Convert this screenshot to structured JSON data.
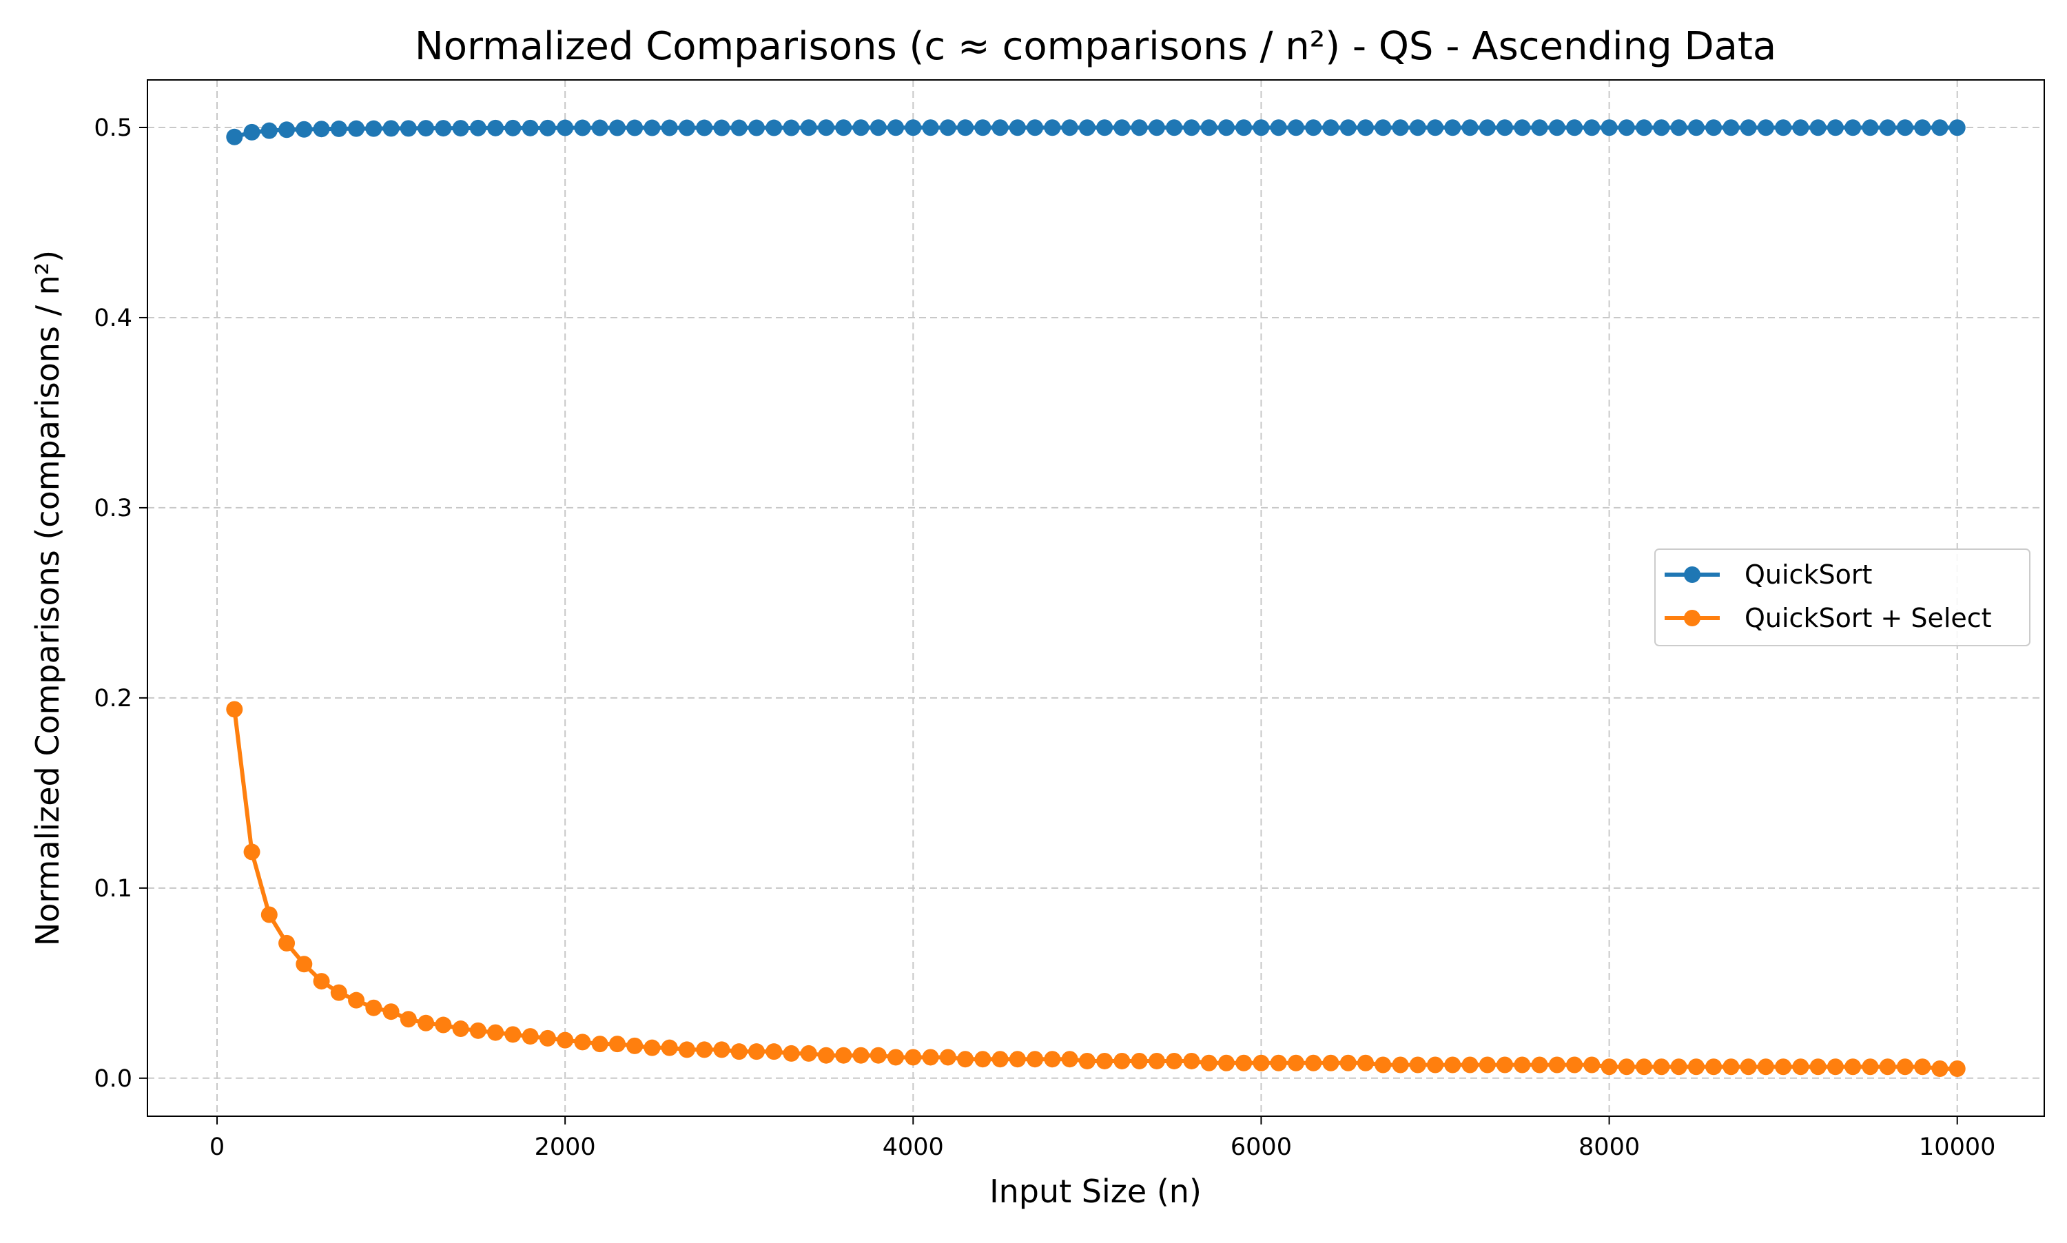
{
  "chart_data": {
    "type": "line",
    "title": "Normalized Comparisons (c ≈ comparisons / n²) - QS - Ascending Data",
    "xlabel": "Input Size (n)",
    "ylabel": "Normalized Comparisons (comparisons / n²)",
    "xlim": [
      -400,
      10500
    ],
    "ylim": [
      -0.02,
      0.525
    ],
    "xticks": [
      0,
      2000,
      4000,
      6000,
      8000,
      10000
    ],
    "xtick_labels": [
      "0",
      "2000",
      "4000",
      "6000",
      "8000",
      "10000"
    ],
    "yticks": [
      0.0,
      0.1,
      0.2,
      0.3,
      0.4,
      0.5
    ],
    "ytick_labels": [
      "0.0",
      "0.1",
      "0.2",
      "0.3",
      "0.4",
      "0.5"
    ],
    "grid": true,
    "legend_position": "center-right",
    "x": [
      100,
      200,
      300,
      400,
      500,
      600,
      700,
      800,
      900,
      1000,
      1100,
      1200,
      1300,
      1400,
      1500,
      1600,
      1700,
      1800,
      1900,
      2000,
      2100,
      2200,
      2300,
      2400,
      2500,
      2600,
      2700,
      2800,
      2900,
      3000,
      3100,
      3200,
      3300,
      3400,
      3500,
      3600,
      3700,
      3800,
      3900,
      4000,
      4100,
      4200,
      4300,
      4400,
      4500,
      4600,
      4700,
      4800,
      4900,
      5000,
      5100,
      5200,
      5300,
      5400,
      5500,
      5600,
      5700,
      5800,
      5900,
      6000,
      6100,
      6200,
      6300,
      6400,
      6500,
      6600,
      6700,
      6800,
      6900,
      7000,
      7100,
      7200,
      7300,
      7400,
      7500,
      7600,
      7700,
      7800,
      7900,
      8000,
      8100,
      8200,
      8300,
      8400,
      8500,
      8600,
      8700,
      8800,
      8900,
      9000,
      9100,
      9200,
      9300,
      9400,
      9500,
      9600,
      9700,
      9800,
      9900,
      10000
    ],
    "series": [
      {
        "name": "QuickSort",
        "color": "#1f77b4",
        "values": [
          0.495,
          0.4975,
          0.4983,
          0.4988,
          0.499,
          0.4992,
          0.4993,
          0.4994,
          0.4994,
          0.4995,
          0.4995,
          0.4996,
          0.4996,
          0.4996,
          0.4997,
          0.4997,
          0.4997,
          0.4997,
          0.4997,
          0.4998,
          0.4998,
          0.4998,
          0.4998,
          0.4998,
          0.4998,
          0.4998,
          0.4998,
          0.4998,
          0.4998,
          0.4998,
          0.4998,
          0.4998,
          0.4998,
          0.4999,
          0.4999,
          0.4999,
          0.4999,
          0.4999,
          0.4999,
          0.4999,
          0.4999,
          0.4999,
          0.4999,
          0.4999,
          0.4999,
          0.4999,
          0.4999,
          0.4999,
          0.4999,
          0.4999,
          0.4999,
          0.4999,
          0.4999,
          0.4999,
          0.4999,
          0.4999,
          0.4999,
          0.4999,
          0.4999,
          0.4999,
          0.4999,
          0.4999,
          0.4999,
          0.4999,
          0.4999,
          0.4999,
          0.4999,
          0.4999,
          0.4999,
          0.4999,
          0.4999,
          0.4999,
          0.4999,
          0.4999,
          0.4999,
          0.4999,
          0.4999,
          0.4999,
          0.4999,
          0.4999,
          0.4999,
          0.4999,
          0.4999,
          0.4999,
          0.4999,
          0.4999,
          0.4999,
          0.4999,
          0.4999,
          0.4999,
          0.4999,
          0.4999,
          0.4999,
          0.4999,
          0.4999,
          0.4999,
          0.4999,
          0.4999,
          0.4999,
          0.4999
        ]
      },
      {
        "name": "QuickSort + Select",
        "color": "#ff7f0e",
        "values": [
          0.194,
          0.119,
          0.086,
          0.071,
          0.06,
          0.051,
          0.045,
          0.041,
          0.037,
          0.035,
          0.031,
          0.029,
          0.028,
          0.026,
          0.025,
          0.024,
          0.023,
          0.022,
          0.021,
          0.02,
          0.019,
          0.018,
          0.018,
          0.017,
          0.016,
          0.016,
          0.015,
          0.015,
          0.015,
          0.014,
          0.014,
          0.014,
          0.013,
          0.013,
          0.012,
          0.012,
          0.012,
          0.012,
          0.011,
          0.011,
          0.011,
          0.011,
          0.01,
          0.01,
          0.01,
          0.01,
          0.01,
          0.01,
          0.01,
          0.009,
          0.009,
          0.009,
          0.009,
          0.009,
          0.009,
          0.009,
          0.008,
          0.008,
          0.008,
          0.008,
          0.008,
          0.008,
          0.008,
          0.008,
          0.008,
          0.008,
          0.007,
          0.007,
          0.007,
          0.007,
          0.007,
          0.007,
          0.007,
          0.007,
          0.007,
          0.007,
          0.007,
          0.007,
          0.007,
          0.006,
          0.006,
          0.006,
          0.006,
          0.006,
          0.006,
          0.006,
          0.006,
          0.006,
          0.006,
          0.006,
          0.006,
          0.006,
          0.006,
          0.006,
          0.006,
          0.006,
          0.006,
          0.006,
          0.005,
          0.005
        ]
      }
    ]
  }
}
